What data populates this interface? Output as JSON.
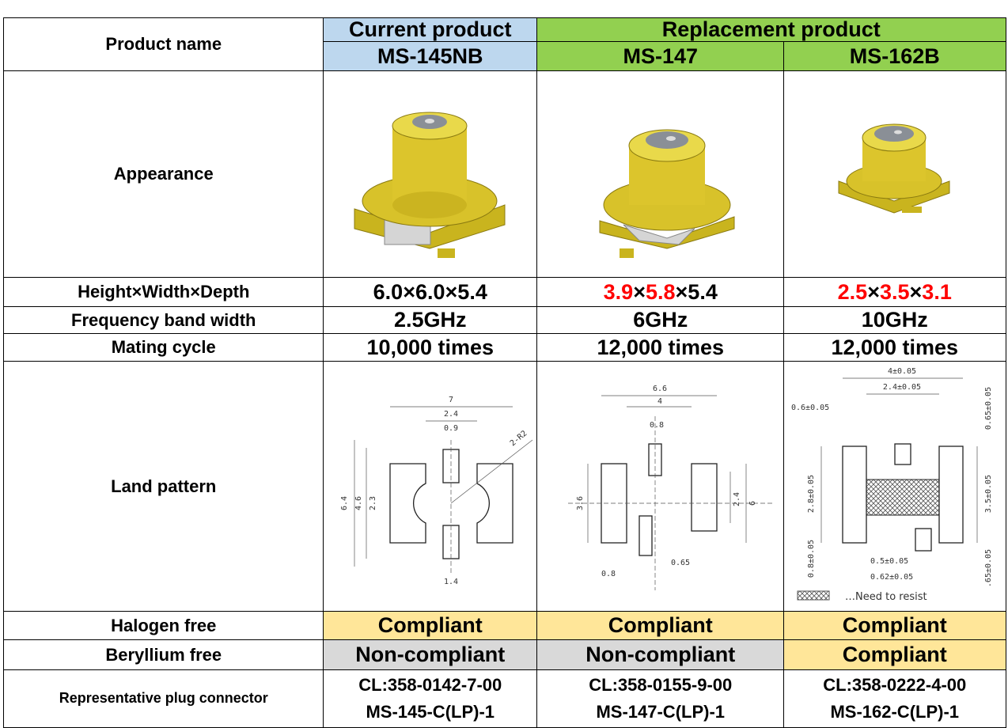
{
  "table": {
    "product_name_label": "Product name",
    "current_label": "Current product",
    "replacement_label": "Replacement product",
    "products": [
      "MS-145NB",
      "MS-147",
      "MS-162B"
    ],
    "appearance_label": "Appearance",
    "size_label": "Height×Width×Depth",
    "size_separator": "×",
    "sizes": [
      [
        {
          "v": "6.0",
          "red": false
        },
        {
          "v": "6.0",
          "red": false
        },
        {
          "v": "5.4",
          "red": false
        }
      ],
      [
        {
          "v": "3.9",
          "red": true
        },
        {
          "v": "5.8",
          "red": true
        },
        {
          "v": "5.4",
          "red": false
        }
      ],
      [
        {
          "v": "2.5",
          "red": true
        },
        {
          "v": "3.5",
          "red": true
        },
        {
          "v": "3.1",
          "red": true
        }
      ]
    ],
    "frequency_label": "Frequency band width",
    "frequencies": [
      "2.5GHz",
      "6GHz",
      "10GHz"
    ],
    "mating_label": "Mating cycle",
    "mating": [
      "10,000 times",
      "12,000 times",
      "12,000 times"
    ],
    "land_label": "Land pattern",
    "land_dims": [
      [
        "7",
        "2.4",
        "0.9",
        "2-R2",
        "6.4",
        "4.6",
        "2.3",
        "1.4"
      ],
      [
        "6.6",
        "4",
        "0.8",
        "3.6",
        "2.4",
        "6",
        "0.65",
        "0.8"
      ],
      [
        "4±0.05",
        "2.4±0.05",
        "0.6±0.05",
        "0.65±0.05",
        "2.8±0.05",
        "3.5±0.05",
        "0.8±0.05",
        "0.5±0.05",
        "0.62±0.05",
        ".65±0.05"
      ]
    ],
    "resist_note": "…Need to resist",
    "halogen_label": "Halogen free",
    "halogen": [
      {
        "text": "Compliant",
        "ok": true
      },
      {
        "text": "Compliant",
        "ok": true
      },
      {
        "text": "Compliant",
        "ok": true
      }
    ],
    "beryllium_label": "Beryllium free",
    "beryllium": [
      {
        "text": "Non-compliant",
        "ok": false
      },
      {
        "text": "Non-compliant",
        "ok": false
      },
      {
        "text": "Compliant",
        "ok": true
      }
    ],
    "plug_label": "Representative plug connector",
    "plugs": [
      [
        "CL:358-0142-7-00",
        "MS-145-C(LP)-1"
      ],
      [
        "CL:358-0155-9-00",
        "MS-147-C(LP)-1"
      ],
      [
        "CL:358-0222-4-00",
        "MS-162-C(LP)-1"
      ]
    ]
  }
}
